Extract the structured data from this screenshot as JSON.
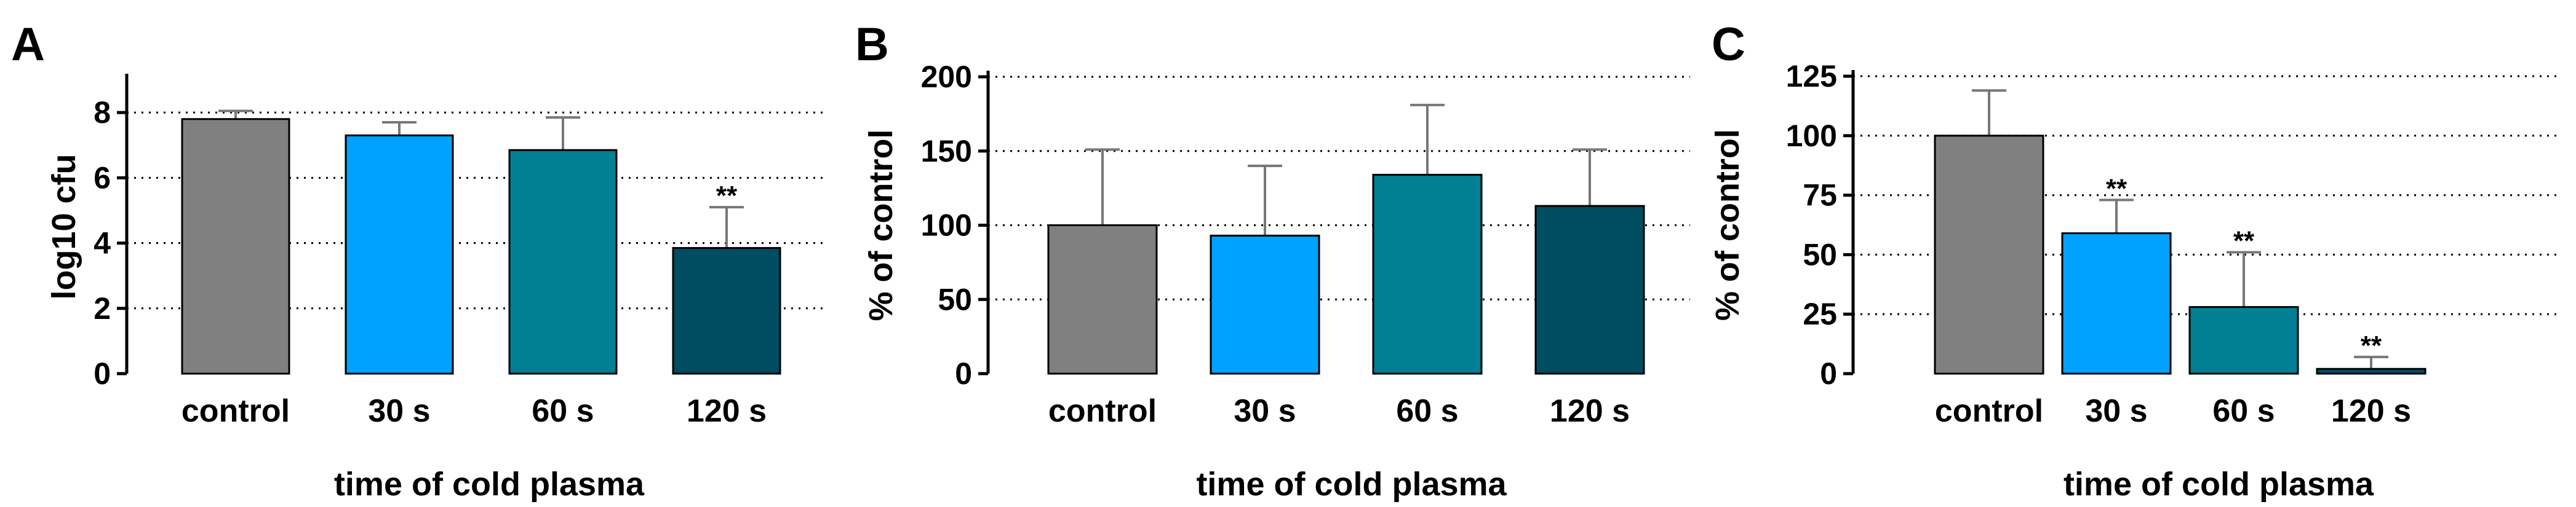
{
  "chart_data": [
    {
      "panel_label": "A",
      "type": "bar",
      "title": "",
      "xlabel": "time of cold plasma",
      "ylabel": "log10 cfu",
      "ylim": [
        0,
        9
      ],
      "yticks": [
        0,
        2,
        4,
        6,
        8
      ],
      "ytick_labels": [
        "0",
        "2",
        "4",
        "6",
        "8"
      ],
      "grid": true,
      "categories": [
        "control",
        "30 s",
        "60 s",
        "120 s"
      ],
      "values": [
        7.8,
        7.3,
        6.85,
        3.85
      ],
      "errors": [
        0.25,
        0.4,
        1.0,
        1.25
      ],
      "significance": [
        "",
        "",
        "",
        "**"
      ],
      "colors": [
        "#808080",
        "#00a2ff",
        "#008092",
        "#004d62"
      ]
    },
    {
      "panel_label": "B",
      "type": "bar",
      "title": "",
      "xlabel": "time of cold plasma",
      "ylabel": "% of control",
      "ylim": [
        0,
        200
      ],
      "yticks": [
        0,
        50,
        100,
        150,
        200
      ],
      "ytick_labels": [
        "0",
        "50",
        "100",
        "150",
        "200"
      ],
      "grid": true,
      "categories": [
        "control",
        "30 s",
        "60 s",
        "120 s"
      ],
      "values": [
        100,
        93,
        134,
        113
      ],
      "errors": [
        51,
        47,
        47,
        38
      ],
      "significance": [
        "",
        "",
        "",
        ""
      ],
      "colors": [
        "#808080",
        "#00a2ff",
        "#008092",
        "#004d62"
      ]
    },
    {
      "panel_label": "C",
      "type": "bar",
      "title": "",
      "xlabel": "time of cold plasma",
      "ylabel": "% of control",
      "ylim": [
        0,
        125
      ],
      "yticks": [
        0,
        25,
        50,
        75,
        100,
        125
      ],
      "ytick_labels": [
        "0",
        "25",
        "50",
        "75",
        "100",
        "125"
      ],
      "grid": true,
      "categories": [
        "control",
        "30 s",
        "60 s",
        "120 s"
      ],
      "values": [
        100,
        59,
        28,
        2
      ],
      "errors": [
        19,
        14,
        23,
        5
      ],
      "significance": [
        "",
        "**",
        "**",
        "**"
      ],
      "colors": [
        "#808080",
        "#00a2ff",
        "#008092",
        "#004d62"
      ]
    }
  ]
}
